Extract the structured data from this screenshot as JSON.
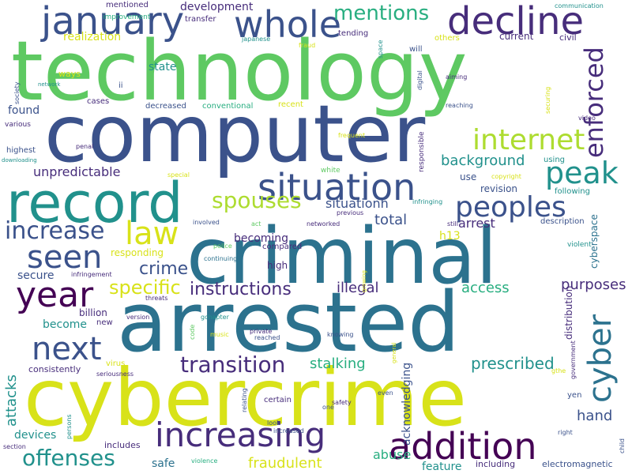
{
  "background": "#ffffff",
  "palette": {
    "purple": "#440154",
    "indigo": "#472d7b",
    "blue": "#3b528b",
    "steel": "#2c728e",
    "teal": "#21918c",
    "sea": "#28ae80",
    "green": "#5ec962",
    "lime": "#addc30",
    "yellow": "#d8e219"
  },
  "words": [
    {
      "text": "technology",
      "color": "#5ec962"
    },
    {
      "text": "computer",
      "color": "#3b528b"
    },
    {
      "text": "criminal",
      "color": "#2c728e"
    },
    {
      "text": "arrested",
      "color": "#2c728e"
    },
    {
      "text": "cybercrime",
      "color": "#d8e219"
    },
    {
      "text": "record",
      "color": "#21918c"
    },
    {
      "text": "decline",
      "color": "#472d7b"
    },
    {
      "text": "january",
      "color": "#3b528b"
    },
    {
      "text": "whole",
      "color": "#3b528b"
    },
    {
      "text": "increasing",
      "color": "#472d7b"
    },
    {
      "text": "addition",
      "color": "#440154"
    },
    {
      "text": "situation",
      "color": "#3b528b"
    },
    {
      "text": "year",
      "color": "#440154"
    },
    {
      "text": "seen",
      "color": "#3b528b"
    },
    {
      "text": "next",
      "color": "#3b528b"
    },
    {
      "text": "peak",
      "color": "#21918c"
    },
    {
      "text": "peoples",
      "color": "#3b528b"
    },
    {
      "text": "internet",
      "color": "#addc30"
    },
    {
      "text": "law",
      "color": "#d8e219"
    },
    {
      "text": "increase",
      "color": "#3b528b"
    },
    {
      "text": "mentions",
      "color": "#28ae80"
    },
    {
      "text": "enforced",
      "color": "#472d7b"
    },
    {
      "text": "cyber",
      "color": "#2c728e"
    },
    {
      "text": "transition",
      "color": "#472d7b"
    },
    {
      "text": "spouses",
      "color": "#addc30"
    },
    {
      "text": "offenses",
      "color": "#21918c"
    },
    {
      "text": "crime",
      "color": "#3b528b"
    },
    {
      "text": "specific",
      "color": "#d8e219"
    },
    {
      "text": "instructions",
      "color": "#472d7b"
    },
    {
      "text": "background",
      "color": "#21918c"
    },
    {
      "text": "prescribed",
      "color": "#21918c"
    },
    {
      "text": "stalking",
      "color": "#28ae80"
    },
    {
      "text": "fraudulent",
      "color": "#d8e219"
    },
    {
      "text": "access",
      "color": "#28ae80"
    },
    {
      "text": "purposes",
      "color": "#472d7b"
    },
    {
      "text": "hand",
      "color": "#3b528b"
    },
    {
      "text": "illegal",
      "color": "#472d7b"
    },
    {
      "text": "arrest",
      "color": "#472d7b"
    },
    {
      "text": "abuse",
      "color": "#28ae80"
    },
    {
      "text": "feature",
      "color": "#21918c"
    },
    {
      "text": "situationh",
      "color": "#3b528b"
    },
    {
      "text": "unpredictable",
      "color": "#472d7b"
    },
    {
      "text": "attacks",
      "color": "#21918c"
    },
    {
      "text": "total",
      "color": "#3b528b"
    },
    {
      "text": "becoming",
      "color": "#472d7b"
    },
    {
      "text": "acknowledging",
      "color": "#3b528b"
    },
    {
      "text": "development",
      "color": "#472d7b"
    },
    {
      "text": "realization",
      "color": "#d8e219"
    },
    {
      "text": "state",
      "color": "#21918c"
    },
    {
      "text": "found",
      "color": "#3b528b"
    },
    {
      "text": "secure",
      "color": "#3b528b"
    },
    {
      "text": "become",
      "color": "#21918c"
    },
    {
      "text": "devices",
      "color": "#21918c"
    },
    {
      "text": "safe",
      "color": "#2c728e"
    },
    {
      "text": "revision",
      "color": "#3b528b"
    },
    {
      "text": "use",
      "color": "#3b528b"
    },
    {
      "text": "h13",
      "color": "#d8e219"
    },
    {
      "text": "cyberspace",
      "color": "#2c728e"
    },
    {
      "text": "distribution",
      "color": "#472d7b"
    },
    {
      "text": "responding",
      "color": "#d8e219"
    },
    {
      "text": "high",
      "color": "#472d7b"
    },
    {
      "text": "billion",
      "color": "#472d7b"
    },
    {
      "text": "including",
      "color": "#472d7b"
    },
    {
      "text": "electromagnetic",
      "color": "#3b528b"
    },
    {
      "text": "consistently",
      "color": "#472d7b"
    },
    {
      "text": "includes",
      "color": "#472d7b"
    },
    {
      "text": "current",
      "color": "#472d7b"
    },
    {
      "text": "tending",
      "color": "#472d7b"
    },
    {
      "text": "mentioned",
      "color": "#472d7b"
    },
    {
      "text": "transfer",
      "color": "#472d7b"
    },
    {
      "text": "improvement",
      "color": "#28ae80"
    },
    {
      "text": "communication",
      "color": "#21918c"
    },
    {
      "text": "others",
      "color": "#d8e219"
    },
    {
      "text": "civil",
      "color": "#472d7b"
    },
    {
      "text": "will",
      "color": "#3b528b"
    },
    {
      "text": "ways",
      "color": "#d8e219"
    },
    {
      "text": "ii",
      "color": "#3b528b"
    },
    {
      "text": "cases",
      "color": "#472d7b"
    },
    {
      "text": "decreased",
      "color": "#3b528b"
    },
    {
      "text": "conventional",
      "color": "#28ae80"
    },
    {
      "text": "recent",
      "color": "#d8e219"
    },
    {
      "text": "reaching",
      "color": "#3b528b"
    },
    {
      "text": "video",
      "color": "#472d7b"
    },
    {
      "text": "various",
      "color": "#472d7b"
    },
    {
      "text": "frequent",
      "color": "#d8e219"
    },
    {
      "text": "highest",
      "color": "#3b528b"
    },
    {
      "text": "penal",
      "color": "#472d7b"
    },
    {
      "text": "downloading",
      "color": "#21918c"
    },
    {
      "text": "special",
      "color": "#d8e219"
    },
    {
      "text": "white",
      "color": "#5ec962"
    },
    {
      "text": "copyright",
      "color": "#d8e219"
    },
    {
      "text": "using",
      "color": "#21918c"
    },
    {
      "text": "following",
      "color": "#21918c"
    },
    {
      "text": "description",
      "color": "#3b528b"
    },
    {
      "text": "violent",
      "color": "#21918c"
    },
    {
      "text": "previous",
      "color": "#472d7b"
    },
    {
      "text": "infringing",
      "color": "#21918c"
    },
    {
      "text": "involved",
      "color": "#3b528b"
    },
    {
      "text": "act",
      "color": "#5ec962"
    },
    {
      "text": "networked",
      "color": "#472d7b"
    },
    {
      "text": "still",
      "color": "#472d7b"
    },
    {
      "text": "police",
      "color": "#5ec962"
    },
    {
      "text": "compared",
      "color": "#472d7b"
    },
    {
      "text": "continuing",
      "color": "#2c728e"
    },
    {
      "text": "infringement",
      "color": "#472d7b"
    },
    {
      "text": "threats",
      "color": "#472d7b"
    },
    {
      "text": "version",
      "color": "#472d7b"
    },
    {
      "text": "gchapter",
      "color": "#21918c"
    },
    {
      "text": "private",
      "color": "#472d7b"
    },
    {
      "text": "reached",
      "color": "#3b528b"
    },
    {
      "text": "knowing",
      "color": "#3b528b"
    },
    {
      "text": "code",
      "color": "#5ec962"
    },
    {
      "text": "music",
      "color": "#d8e219"
    },
    {
      "text": "virus",
      "color": "#d8e219"
    },
    {
      "text": "seriousness",
      "color": "#472d7b"
    },
    {
      "text": "new",
      "color": "#472d7b"
    },
    {
      "text": "persons",
      "color": "#21918c"
    },
    {
      "text": "relating",
      "color": "#3b528b"
    },
    {
      "text": "look",
      "color": "#3b528b"
    },
    {
      "text": "increased",
      "color": "#3b528b"
    },
    {
      "text": "certain",
      "color": "#472d7b"
    },
    {
      "text": "one",
      "color": "#3b528b"
    },
    {
      "text": "safety",
      "color": "#472d7b"
    },
    {
      "text": "even",
      "color": "#3b528b"
    },
    {
      "text": "general",
      "color": "#d8e219"
    },
    {
      "text": "yen",
      "color": "#3b528b"
    },
    {
      "text": "government",
      "color": "#472d7b"
    },
    {
      "text": "gthe",
      "color": "#d8e219"
    },
    {
      "text": "right",
      "color": "#3b528b"
    },
    {
      "text": "child",
      "color": "#3b528b"
    },
    {
      "text": "section",
      "color": "#472d7b"
    },
    {
      "text": "violence",
      "color": "#28ae80"
    },
    {
      "text": "society",
      "color": "#3b528b"
    },
    {
      "text": "network",
      "color": "#21918c"
    },
    {
      "text": "japanese",
      "color": "#21918c"
    },
    {
      "text": "fraud",
      "color": "#d8e219"
    },
    {
      "text": "space",
      "color": "#21918c"
    },
    {
      "text": "digital",
      "color": "#3b528b"
    },
    {
      "text": "aiming",
      "color": "#472d7b"
    },
    {
      "text": "securing",
      "color": "#d8e219"
    },
    {
      "text": "responsible",
      "color": "#472d7b"
    },
    {
      "text": "growing",
      "color": "#d8e219"
    }
  ]
}
